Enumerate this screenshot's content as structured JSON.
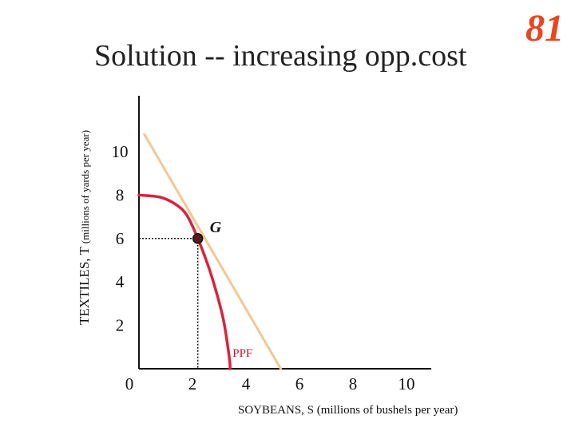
{
  "slide": {
    "title": "Solution -- increasing opp.cost",
    "number": "81"
  },
  "colors": {
    "curve": "#D8243C",
    "tangent": "#F3C795",
    "slide_number": "#E8461E",
    "axis": "#111111"
  },
  "chart_data": {
    "type": "line",
    "title": "Solution -- increasing opp.cost",
    "ylabel_main": "TEXTILES, T",
    "ylabel_units": "(millions of yards per year)",
    "xlabel": "SOYBEANS, S (millions of bushels per year)",
    "xlim": [
      0,
      11
    ],
    "ylim": [
      0,
      12
    ],
    "x_ticks": [
      "0",
      "2",
      "4",
      "6",
      "8",
      "10"
    ],
    "y_ticks": [
      "10",
      "8",
      "6",
      "4",
      "2"
    ],
    "series": [
      {
        "name": "PPF",
        "color": "#D8243C",
        "x": [
          0,
          0.8,
          1.4,
          1.8,
          2.2,
          2.6,
          2.9,
          3.15,
          3.3,
          3.4,
          3.4
        ],
        "y": [
          8.0,
          7.9,
          7.55,
          7.05,
          6.0,
          4.7,
          3.5,
          2.3,
          1.2,
          0.25,
          0
        ]
      },
      {
        "name": "tangent",
        "color": "#F3C795",
        "x": [
          0.2,
          5.3
        ],
        "y": [
          10.8,
          0
        ]
      }
    ],
    "annotations": [
      {
        "label": "G",
        "x": 2.2,
        "y": 6.0
      },
      {
        "label": "PPF",
        "x": 3.5,
        "y": 0.55
      }
    ]
  }
}
